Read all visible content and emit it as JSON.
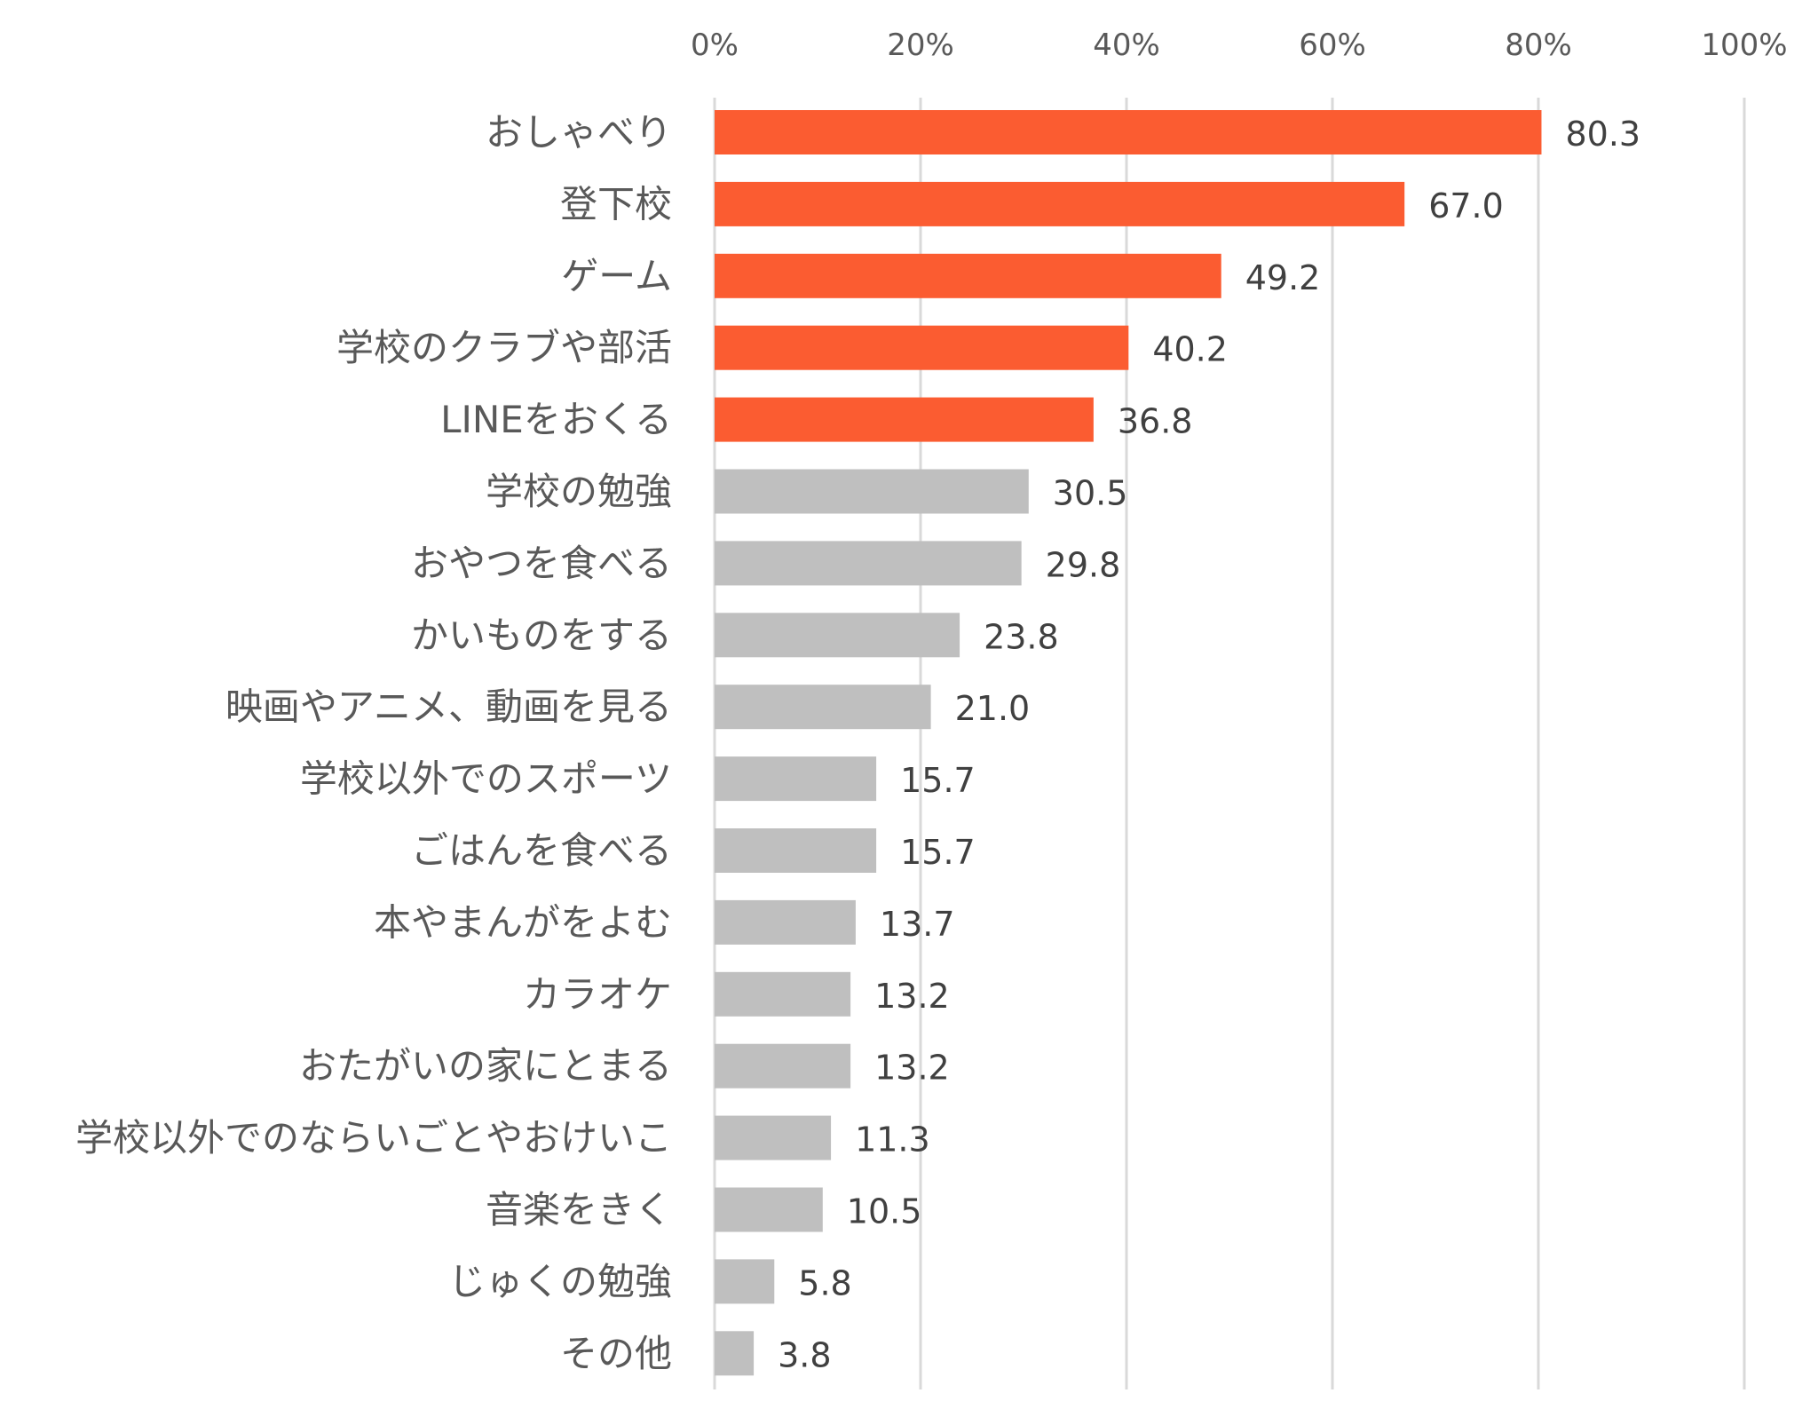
{
  "chart_data": {
    "type": "bar",
    "orientation": "horizontal",
    "title": "",
    "xlabel": "",
    "ylabel": "",
    "xlim": [
      0,
      100
    ],
    "ticks": [
      {
        "value": 0,
        "label": "0%"
      },
      {
        "value": 20,
        "label": "20%"
      },
      {
        "value": 40,
        "label": "40%"
      },
      {
        "value": 60,
        "label": "60%"
      },
      {
        "value": 80,
        "label": "80%"
      },
      {
        "value": 100,
        "label": "100%"
      }
    ],
    "tick_position": "top",
    "grid": true,
    "legend": "none",
    "highlight_color": "#fb5c31",
    "base_color": "#bfbfbf",
    "bars": [
      {
        "category": "おしゃべり",
        "value": 80.3,
        "label": "80.3",
        "highlight": true
      },
      {
        "category": "登下校",
        "value": 67.0,
        "label": "67.0",
        "highlight": true
      },
      {
        "category": "ゲーム",
        "value": 49.2,
        "label": "49.2",
        "highlight": true
      },
      {
        "category": "学校のクラブや部活",
        "value": 40.2,
        "label": "40.2",
        "highlight": true
      },
      {
        "category": "LINEをおくる",
        "value": 36.8,
        "label": "36.8",
        "highlight": true
      },
      {
        "category": "学校の勉強",
        "value": 30.5,
        "label": "30.5",
        "highlight": false
      },
      {
        "category": "おやつを食べる",
        "value": 29.8,
        "label": "29.8",
        "highlight": false
      },
      {
        "category": "かいものをする",
        "value": 23.8,
        "label": "23.8",
        "highlight": false
      },
      {
        "category": "映画やアニメ、動画を見る",
        "value": 21.0,
        "label": "21.0",
        "highlight": false
      },
      {
        "category": "学校以外でのスポーツ",
        "value": 15.7,
        "label": "15.7",
        "highlight": false
      },
      {
        "category": "ごはんを食べる",
        "value": 15.7,
        "label": "15.7",
        "highlight": false
      },
      {
        "category": "本やまんがをよむ",
        "value": 13.7,
        "label": "13.7",
        "highlight": false
      },
      {
        "category": "カラオケ",
        "value": 13.2,
        "label": "13.2",
        "highlight": false
      },
      {
        "category": "おたがいの家にとまる",
        "value": 13.2,
        "label": "13.2",
        "highlight": false
      },
      {
        "category": "学校以外でのならいごとやおけいこ",
        "value": 11.3,
        "label": "11.3",
        "highlight": false
      },
      {
        "category": "音楽をきく",
        "value": 10.5,
        "label": "10.5",
        "highlight": false
      },
      {
        "category": "じゅくの勉強",
        "value": 5.8,
        "label": "5.8",
        "highlight": false
      },
      {
        "category": "その他",
        "value": 3.8,
        "label": "3.8",
        "highlight": false
      }
    ]
  }
}
